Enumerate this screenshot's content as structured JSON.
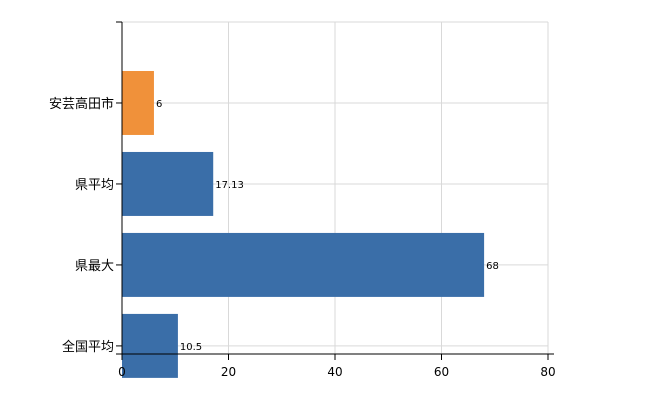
{
  "chart_data": {
    "type": "bar",
    "orientation": "horizontal",
    "categories": [
      "安芸高田市",
      "県平均",
      "県最大",
      "全国平均"
    ],
    "values": [
      6,
      17.13,
      68,
      10.5
    ],
    "value_labels": [
      "6",
      "17.13",
      "68",
      "10.5"
    ],
    "colors": [
      "#f0913a",
      "#3a6ea8",
      "#3a6ea8",
      "#3a6ea8"
    ],
    "xlim": [
      0,
      80
    ],
    "xticks": [
      0,
      20,
      40,
      60,
      80
    ],
    "xtick_labels": [
      "0",
      "20",
      "40",
      "60",
      "80"
    ],
    "grid": true,
    "title": "",
    "xlabel": "",
    "ylabel": ""
  }
}
